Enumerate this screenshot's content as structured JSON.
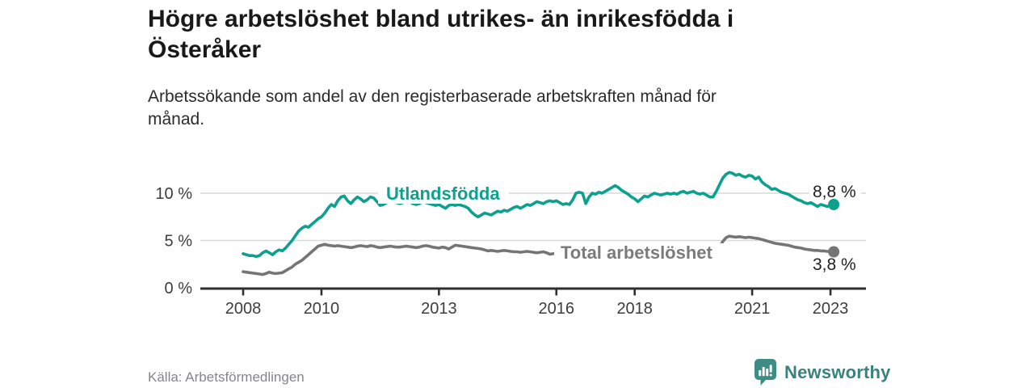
{
  "title": "Högre arbetslöshet bland utrikes- än inrikesfödda i\nÖsteråker",
  "subtitle": "Arbetssökande som andel av den registerbaserade arbetskraften månad för\nmånad.",
  "source": "Källa: Arbetsförmedlingen",
  "brand": {
    "name": "Newsworthy",
    "icon": "newsworthy-bar-chart-bubble-icon",
    "color": "#3E8C86"
  },
  "colors": {
    "foreign_born_line": "#0CA18F",
    "total_line": "#757575",
    "gridline": "#D9D9D9",
    "axis": "#2F2F2F"
  },
  "chart_data": {
    "type": "line",
    "unit": "%",
    "grid": "horizontal gridlines at 5% and 10%",
    "legend_position": "inline labels on lines, end-value labels at right",
    "x_range": {
      "start": "2008-01",
      "end": "2023-02",
      "frequency": "monthly"
    },
    "ylim": [
      0,
      12.6
    ],
    "x_ticks": [
      {
        "year": 2008,
        "label": "2008"
      },
      {
        "year": 2010,
        "label": "2010"
      },
      {
        "year": 2013,
        "label": "2013"
      },
      {
        "year": 2016,
        "label": "2016"
      },
      {
        "year": 2018,
        "label": "2018"
      },
      {
        "year": 2021,
        "label": "2021"
      },
      {
        "year": 2023,
        "label": "2023"
      }
    ],
    "y_ticks": [
      {
        "value": 0,
        "label": "0 %"
      },
      {
        "value": 5,
        "label": "5 %"
      },
      {
        "value": 10,
        "label": "10 %"
      }
    ],
    "series": [
      {
        "name": "Utlandsfödda",
        "color": "#0CA18F",
        "end_label": "8,8 %",
        "end_value": 8.8,
        "values": [
          3.6,
          3.5,
          3.4,
          3.4,
          3.3,
          3.4,
          3.7,
          3.9,
          3.7,
          3.5,
          3.8,
          4.0,
          3.9,
          4.2,
          4.6,
          5.0,
          5.5,
          6.0,
          6.3,
          6.5,
          6.4,
          6.7,
          7.0,
          7.3,
          7.5,
          7.9,
          8.4,
          8.8,
          8.6,
          9.2,
          9.6,
          9.7,
          9.2,
          8.9,
          9.3,
          9.6,
          9.4,
          9.1,
          9.3,
          9.6,
          9.5,
          9.1,
          8.7,
          8.8,
          9.0,
          9.2,
          9.1,
          9.0,
          8.9,
          9.0,
          9.2,
          9.1,
          8.9,
          8.8,
          8.9,
          9.1,
          9.0,
          8.9,
          8.8,
          8.7,
          8.8,
          8.6,
          8.4,
          8.7,
          8.8,
          8.7,
          8.8,
          8.7,
          8.6,
          8.4,
          8.0,
          7.7,
          7.5,
          7.7,
          7.9,
          7.8,
          7.7,
          7.9,
          8.1,
          8.0,
          8.2,
          8.1,
          8.3,
          8.5,
          8.6,
          8.4,
          8.6,
          8.8,
          8.7,
          8.9,
          9.1,
          9.0,
          8.9,
          9.1,
          9.2,
          9.1,
          9.2,
          9.0,
          8.8,
          8.9,
          8.8,
          9.3,
          10.0,
          10.1,
          10.0,
          8.9,
          9.6,
          10.0,
          9.9,
          10.1,
          10.0,
          10.2,
          10.4,
          10.6,
          10.8,
          10.6,
          10.3,
          10.1,
          9.9,
          9.6,
          9.4,
          9.1,
          9.4,
          9.7,
          9.6,
          9.8,
          10.0,
          9.9,
          9.8,
          9.9,
          10.0,
          9.9,
          10.0,
          9.9,
          10.1,
          10.2,
          10.0,
          10.1,
          10.2,
          10.0,
          9.9,
          10.0,
          9.8,
          9.6,
          9.6,
          10.2,
          10.9,
          11.6,
          12.0,
          12.2,
          12.1,
          11.9,
          12.0,
          11.8,
          11.7,
          11.9,
          11.8,
          11.5,
          11.7,
          11.2,
          10.9,
          10.7,
          10.4,
          10.5,
          10.3,
          10.1,
          10.0,
          9.9,
          9.7,
          9.5,
          9.3,
          9.2,
          9.0,
          8.9,
          9.0,
          8.8,
          8.6,
          8.8,
          8.7,
          8.6,
          8.7,
          8.8
        ]
      },
      {
        "name": "Total arbetslöshet",
        "color": "#757575",
        "end_label": "3,8 %",
        "end_value": 3.8,
        "values": [
          1.7,
          1.65,
          1.6,
          1.55,
          1.5,
          1.45,
          1.4,
          1.5,
          1.65,
          1.55,
          1.5,
          1.55,
          1.6,
          1.8,
          2.0,
          2.2,
          2.5,
          2.7,
          2.9,
          3.2,
          3.5,
          3.8,
          4.1,
          4.4,
          4.5,
          4.6,
          4.5,
          4.45,
          4.4,
          4.45,
          4.4,
          4.35,
          4.3,
          4.25,
          4.3,
          4.4,
          4.45,
          4.4,
          4.35,
          4.45,
          4.4,
          4.3,
          4.25,
          4.3,
          4.35,
          4.4,
          4.35,
          4.3,
          4.3,
          4.35,
          4.4,
          4.35,
          4.3,
          4.25,
          4.3,
          4.4,
          4.45,
          4.4,
          4.3,
          4.25,
          4.2,
          4.3,
          4.25,
          4.1,
          4.3,
          4.5,
          4.45,
          4.4,
          4.35,
          4.3,
          4.25,
          4.2,
          4.15,
          4.1,
          4.0,
          3.9,
          3.95,
          3.9,
          3.85,
          3.9,
          3.95,
          3.9,
          3.85,
          3.8,
          3.8,
          3.75,
          3.8,
          3.85,
          3.8,
          3.75,
          3.7,
          3.75,
          3.8,
          3.7,
          3.55,
          3.6,
          3.7,
          3.65,
          3.7,
          3.75,
          3.7,
          3.65,
          3.6,
          3.65,
          3.7,
          3.65,
          3.6,
          3.55,
          3.6,
          3.55,
          3.6,
          3.65,
          3.6,
          3.55,
          3.5,
          3.55,
          3.6,
          3.5,
          3.45,
          3.4,
          3.45,
          3.4,
          3.45,
          3.5,
          3.45,
          3.4,
          3.35,
          3.4,
          3.45,
          3.4,
          3.35,
          3.3,
          3.35,
          3.3,
          3.35,
          3.4,
          3.35,
          3.3,
          3.25,
          3.3,
          3.4,
          3.45,
          3.5,
          3.55,
          3.6,
          3.8,
          4.3,
          4.9,
          5.3,
          5.45,
          5.4,
          5.35,
          5.4,
          5.35,
          5.3,
          5.35,
          5.3,
          5.25,
          5.2,
          5.1,
          5.0,
          4.9,
          4.8,
          4.7,
          4.65,
          4.6,
          4.55,
          4.5,
          4.4,
          4.3,
          4.25,
          4.2,
          4.1,
          4.05,
          4.0,
          3.95,
          3.95,
          3.9,
          3.9,
          3.85,
          3.85,
          3.8
        ]
      }
    ]
  }
}
